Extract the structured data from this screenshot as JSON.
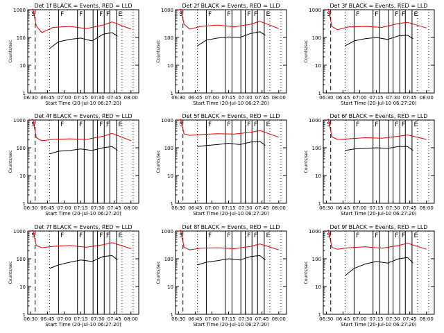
{
  "figure": {
    "common_xlabel": "Start Time (20-Jul-10 06:27:20)",
    "common_ylabel": "Counts/sec",
    "x_tick_labels": [
      "06:30",
      "06:45",
      "07:00",
      "07:15",
      "07:30",
      "07:45",
      "08:00"
    ],
    "y_tick_labels": [
      "1",
      "10",
      "100",
      "1000"
    ],
    "colors": {
      "events": "#000000",
      "lld": "#dd0000"
    }
  },
  "chart_data": [
    {
      "type": "line",
      "title": "Det 1f BLACK = Events, RED = LLD",
      "xlim": [
        "06:27:20",
        "08:07:00"
      ],
      "ylim": [
        1,
        1000
      ],
      "yscale": "log",
      "series": [
        {
          "values_hint": "events",
          "points": [
            [
              "06:47",
              40
            ],
            [
              "06:55",
              70
            ],
            [
              "07:05",
              85
            ],
            [
              "07:15",
              95
            ],
            [
              "07:25",
              75
            ],
            [
              "07:35",
              130
            ],
            [
              "07:43",
              150
            ],
            [
              "07:48",
              110
            ]
          ]
        },
        {
          "values_hint": "lld",
          "points": [
            [
              "06:29",
              950
            ],
            [
              "06:32",
              1050
            ],
            [
              "06:35",
              260
            ],
            [
              "06:40",
              150
            ],
            [
              "06:50",
              230
            ],
            [
              "07:05",
              250
            ],
            [
              "07:20",
              210
            ],
            [
              "07:35",
              280
            ],
            [
              "07:43",
              360
            ],
            [
              "08:00",
              200
            ]
          ]
        }
      ],
      "markers": {
        "annotations": [
          "S",
          "F",
          "F",
          "F",
          "F",
          "E"
        ]
      }
    },
    {
      "type": "line",
      "title": "Det 2f BLACK = Events, RED = LLD",
      "xlim": [
        "06:27:20",
        "08:07:00"
      ],
      "ylim": [
        1,
        1000
      ],
      "yscale": "log",
      "series": [
        {
          "values_hint": "events",
          "points": [
            [
              "06:47",
              50
            ],
            [
              "06:55",
              80
            ],
            [
              "07:05",
              95
            ],
            [
              "07:15",
              105
            ],
            [
              "07:25",
              100
            ],
            [
              "07:35",
              140
            ],
            [
              "07:43",
              160
            ],
            [
              "07:48",
              120
            ]
          ]
        },
        {
          "values_hint": "lld",
          "points": [
            [
              "06:29",
              950
            ],
            [
              "06:32",
              1050
            ],
            [
              "06:35",
              300
            ],
            [
              "06:40",
              200
            ],
            [
              "06:50",
              250
            ],
            [
              "07:05",
              280
            ],
            [
              "07:20",
              240
            ],
            [
              "07:35",
              300
            ],
            [
              "07:43",
              380
            ],
            [
              "08:00",
              210
            ]
          ]
        }
      ],
      "markers": {
        "annotations": [
          "S",
          "F",
          "F",
          "F",
          "F",
          "E"
        ]
      }
    },
    {
      "type": "line",
      "title": "Det 3f BLACK = Events, RED = LLD",
      "xlim": [
        "06:27:20",
        "08:07:00"
      ],
      "ylim": [
        1,
        1000
      ],
      "yscale": "log",
      "series": [
        {
          "values_hint": "events",
          "points": [
            [
              "06:47",
              50
            ],
            [
              "06:55",
              75
            ],
            [
              "07:05",
              90
            ],
            [
              "07:15",
              100
            ],
            [
              "07:25",
              85
            ],
            [
              "07:35",
              115
            ],
            [
              "07:43",
              120
            ],
            [
              "07:48",
              90
            ]
          ]
        },
        {
          "values_hint": "lld",
          "points": [
            [
              "06:29",
              950
            ],
            [
              "06:32",
              1050
            ],
            [
              "06:35",
              250
            ],
            [
              "06:40",
              190
            ],
            [
              "06:50",
              240
            ],
            [
              "07:05",
              250
            ],
            [
              "07:20",
              230
            ],
            [
              "07:35",
              320
            ],
            [
              "07:43",
              350
            ],
            [
              "08:00",
              220
            ]
          ]
        }
      ],
      "markers": {
        "annotations": [
          "S",
          "F",
          "F",
          "F",
          "F",
          "E"
        ]
      }
    },
    {
      "type": "line",
      "title": "Det 4f BLACK = Events, RED = LLD",
      "xlim": [
        "06:27:20",
        "08:07:00"
      ],
      "ylim": [
        1,
        1000
      ],
      "yscale": "log",
      "series": [
        {
          "values_hint": "events",
          "points": [
            [
              "06:47",
              60
            ],
            [
              "06:55",
              75
            ],
            [
              "07:05",
              80
            ],
            [
              "07:15",
              90
            ],
            [
              "07:25",
              80
            ],
            [
              "07:35",
              100
            ],
            [
              "07:43",
              110
            ],
            [
              "07:48",
              80
            ]
          ]
        },
        {
          "values_hint": "lld",
          "points": [
            [
              "06:29",
              950
            ],
            [
              "06:32",
              1050
            ],
            [
              "06:35",
              230
            ],
            [
              "06:40",
              180
            ],
            [
              "06:50",
              200
            ],
            [
              "07:05",
              210
            ],
            [
              "07:20",
              200
            ],
            [
              "07:35",
              260
            ],
            [
              "07:43",
              330
            ],
            [
              "08:00",
              180
            ]
          ]
        }
      ],
      "markers": {
        "annotations": [
          "S",
          "F",
          "F",
          "F",
          "F",
          "E"
        ]
      }
    },
    {
      "type": "line",
      "title": "Det 5f BLACK = Events, RED = LLD",
      "xlim": [
        "06:27:20",
        "08:07:00"
      ],
      "ylim": [
        1,
        1000
      ],
      "yscale": "log",
      "series": [
        {
          "values_hint": "events",
          "points": [
            [
              "06:47",
              110
            ],
            [
              "06:55",
              120
            ],
            [
              "07:05",
              130
            ],
            [
              "07:15",
              145
            ],
            [
              "07:25",
              130
            ],
            [
              "07:35",
              160
            ],
            [
              "07:43",
              170
            ],
            [
              "07:48",
              120
            ]
          ]
        },
        {
          "values_hint": "lld",
          "points": [
            [
              "06:29",
              950
            ],
            [
              "06:32",
              1050
            ],
            [
              "06:35",
              320
            ],
            [
              "06:40",
              280
            ],
            [
              "06:50",
              300
            ],
            [
              "07:05",
              320
            ],
            [
              "07:20",
              310
            ],
            [
              "07:35",
              360
            ],
            [
              "07:43",
              420
            ],
            [
              "08:00",
              240
            ]
          ]
        }
      ],
      "markers": {
        "annotations": [
          "S",
          "F",
          "F",
          "F",
          "F",
          "E"
        ]
      }
    },
    {
      "type": "line",
      "title": "Det 6f BLACK = Events, RED = LLD",
      "xlim": [
        "06:27:20",
        "08:07:00"
      ],
      "ylim": [
        1,
        1000
      ],
      "yscale": "log",
      "series": [
        {
          "values_hint": "events",
          "points": [
            [
              "06:47",
              80
            ],
            [
              "06:55",
              90
            ],
            [
              "07:05",
              95
            ],
            [
              "07:15",
              100
            ],
            [
              "07:25",
              95
            ],
            [
              "07:35",
              110
            ],
            [
              "07:43",
              110
            ],
            [
              "07:48",
              80
            ]
          ]
        },
        {
          "values_hint": "lld",
          "points": [
            [
              "06:29",
              950
            ],
            [
              "06:32",
              1050
            ],
            [
              "06:35",
              250
            ],
            [
              "06:40",
              200
            ],
            [
              "06:50",
              210
            ],
            [
              "07:05",
              230
            ],
            [
              "07:20",
              220
            ],
            [
              "07:35",
              260
            ],
            [
              "07:43",
              290
            ],
            [
              "08:00",
              200
            ]
          ]
        }
      ],
      "markers": {
        "annotations": [
          "S",
          "F",
          "F",
          "F",
          "F",
          "E"
        ]
      }
    },
    {
      "type": "line",
      "title": "Det 7f BLACK = Events, RED = LLD",
      "xlim": [
        "06:27:20",
        "08:07:00"
      ],
      "ylim": [
        1,
        1000
      ],
      "yscale": "log",
      "series": [
        {
          "values_hint": "events",
          "points": [
            [
              "06:47",
              45
            ],
            [
              "06:55",
              60
            ],
            [
              "07:05",
              75
            ],
            [
              "07:15",
              90
            ],
            [
              "07:25",
              80
            ],
            [
              "07:35",
              120
            ],
            [
              "07:43",
              130
            ],
            [
              "07:48",
              90
            ]
          ]
        },
        {
          "values_hint": "lld",
          "points": [
            [
              "06:29",
              950
            ],
            [
              "06:32",
              1050
            ],
            [
              "06:35",
              300
            ],
            [
              "06:40",
              250
            ],
            [
              "06:50",
              280
            ],
            [
              "07:05",
              300
            ],
            [
              "07:20",
              260
            ],
            [
              "07:35",
              320
            ],
            [
              "07:43",
              380
            ],
            [
              "08:00",
              230
            ]
          ]
        }
      ],
      "markers": {
        "annotations": [
          "S",
          "F",
          "F",
          "F",
          "F",
          "E"
        ]
      }
    },
    {
      "type": "line",
      "title": "Det 8f BLACK = Events, RED = LLD",
      "xlim": [
        "06:27:20",
        "08:07:00"
      ],
      "ylim": [
        1,
        1000
      ],
      "yscale": "log",
      "series": [
        {
          "values_hint": "events",
          "points": [
            [
              "06:47",
              60
            ],
            [
              "06:55",
              75
            ],
            [
              "07:05",
              85
            ],
            [
              "07:15",
              100
            ],
            [
              "07:25",
              90
            ],
            [
              "07:35",
              120
            ],
            [
              "07:43",
              130
            ],
            [
              "07:48",
              90
            ]
          ]
        },
        {
          "values_hint": "lld",
          "points": [
            [
              "06:29",
              950
            ],
            [
              "06:32",
              1050
            ],
            [
              "06:35",
              260
            ],
            [
              "06:40",
              210
            ],
            [
              "06:50",
              240
            ],
            [
              "07:05",
              250
            ],
            [
              "07:20",
              230
            ],
            [
              "07:35",
              280
            ],
            [
              "07:43",
              340
            ],
            [
              "08:00",
              210
            ]
          ]
        }
      ],
      "markers": {
        "annotations": [
          "S",
          "F",
          "F",
          "F",
          "F",
          "E"
        ]
      }
    },
    {
      "type": "line",
      "title": "Det 9f BLACK = Events, RED = LLD",
      "xlim": [
        "06:27:20",
        "08:07:00"
      ],
      "ylim": [
        1,
        1000
      ],
      "yscale": "log",
      "series": [
        {
          "values_hint": "events",
          "points": [
            [
              "06:47",
              25
            ],
            [
              "06:55",
              45
            ],
            [
              "07:05",
              65
            ],
            [
              "07:15",
              80
            ],
            [
              "07:25",
              70
            ],
            [
              "07:35",
              100
            ],
            [
              "07:43",
              110
            ],
            [
              "07:48",
              70
            ]
          ]
        },
        {
          "values_hint": "lld",
          "points": [
            [
              "06:29",
              950
            ],
            [
              "06:32",
              1050
            ],
            [
              "06:35",
              260
            ],
            [
              "06:40",
              220
            ],
            [
              "06:50",
              250
            ],
            [
              "07:05",
              270
            ],
            [
              "07:20",
              240
            ],
            [
              "07:35",
              300
            ],
            [
              "07:43",
              360
            ],
            [
              "08:00",
              220
            ]
          ]
        }
      ],
      "markers": {
        "annotations": [
          "S",
          "F",
          "F",
          "F",
          "F",
          "E"
        ]
      }
    }
  ]
}
